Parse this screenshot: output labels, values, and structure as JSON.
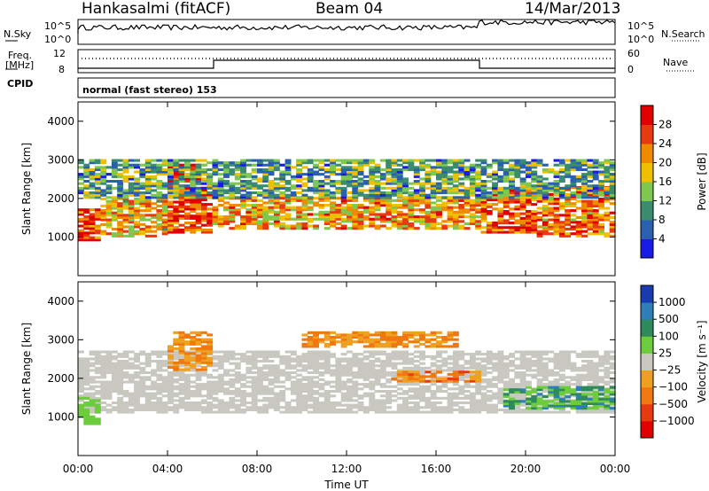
{
  "header": {
    "station": "Hankasalmi (fitACF)",
    "beam": "Beam 04",
    "date": "14/Mar/2013"
  },
  "top_panels": {
    "nsky_label": "N.Sky",
    "nsky_ticks": [
      "10^5",
      "10^0"
    ],
    "nsearch_label": "N.Search",
    "nsearch_ticks": [
      "10^5",
      "10^0"
    ],
    "freq_label_1": "Freq.",
    "freq_label_2": "[MHz]",
    "freq_ticks": [
      "12",
      "8"
    ],
    "nave_label": "Nave",
    "nave_ticks": [
      "60",
      "0"
    ],
    "cpid_label": "CPID",
    "cpid_text": "normal (fast stereo) 153"
  },
  "chart_data": [
    {
      "type": "heatmap",
      "title": "",
      "xlabel": "Time UT",
      "ylabel": "Slant Range [km]",
      "x_ticks": [
        "00:00",
        "04:00",
        "08:00",
        "12:00",
        "16:00",
        "20:00",
        "00:00"
      ],
      "y_ticks": [
        "1000",
        "2000",
        "3000",
        "4000"
      ],
      "ylim": [
        0,
        4500
      ],
      "colorbar": {
        "label": "Power [dB]",
        "ticks": [
          "4",
          "8",
          "12",
          "16",
          "20",
          "24",
          "28"
        ],
        "colors": [
          "#1a1ae6",
          "#2b5fb0",
          "#3b8c6e",
          "#7ec850",
          "#f0c000",
          "#f08a00",
          "#e83a10",
          "#e00000"
        ]
      },
      "bands": [
        {
          "t0": 0.0,
          "t1": 1.0,
          "r0": 900,
          "r1": 1700,
          "level": 0.85
        },
        {
          "t0": 1.0,
          "t1": 4.0,
          "r0": 1000,
          "r1": 2000,
          "level": 0.6
        },
        {
          "t0": 4.0,
          "t1": 6.0,
          "r0": 1100,
          "r1": 2900,
          "level": 0.85
        },
        {
          "t0": 6.0,
          "t1": 18.0,
          "r0": 1200,
          "r1": 2000,
          "level": 0.65
        },
        {
          "t0": 18.0,
          "t1": 20.5,
          "r0": 1100,
          "r1": 2200,
          "level": 0.8
        },
        {
          "t0": 20.5,
          "t1": 24.0,
          "r0": 1000,
          "r1": 2300,
          "level": 0.7
        },
        {
          "t0": 0.0,
          "t1": 24.0,
          "r0": 2000,
          "r1": 3000,
          "level": 0.35
        }
      ]
    },
    {
      "type": "heatmap",
      "title": "",
      "xlabel": "Time UT",
      "ylabel": "Slant Range [km]",
      "x_ticks": [
        "00:00",
        "04:00",
        "08:00",
        "12:00",
        "16:00",
        "20:00",
        "00:00"
      ],
      "y_ticks": [
        "1000",
        "2000",
        "3000",
        "4000"
      ],
      "ylim": [
        0,
        4500
      ],
      "colorbar": {
        "label": "Velocity [m s⁻¹]",
        "ticks": [
          "1000",
          "500",
          "100",
          "25",
          "−25",
          "−100",
          "−500",
          "−1000"
        ],
        "colors": [
          "#1a3ab0",
          "#2e7fb8",
          "#2e8a5a",
          "#6ccc3c",
          "#c8c8c0",
          "#f0a020",
          "#f07810",
          "#e83a10",
          "#e00000"
        ]
      },
      "bands": [
        {
          "t0": 0.0,
          "t1": 24.0,
          "r0": 1100,
          "r1": 2700,
          "class": "ground",
          "level": 0.5
        },
        {
          "t0": 0.0,
          "t1": 1.0,
          "r0": 800,
          "r1": 1500,
          "class": "positive",
          "level": 0.3
        },
        {
          "t0": 4.0,
          "t1": 6.0,
          "r0": 2200,
          "r1": 3200,
          "class": "negative",
          "level": 0.6
        },
        {
          "t0": 10.0,
          "t1": 17.0,
          "r0": 2800,
          "r1": 3200,
          "class": "negative",
          "level": 0.6
        },
        {
          "t0": 14.0,
          "t1": 18.0,
          "r0": 1900,
          "r1": 2200,
          "class": "negative",
          "level": 0.8
        },
        {
          "t0": 19.0,
          "t1": 24.0,
          "r0": 1200,
          "r1": 1800,
          "class": "positive",
          "level": 0.8
        }
      ]
    }
  ]
}
